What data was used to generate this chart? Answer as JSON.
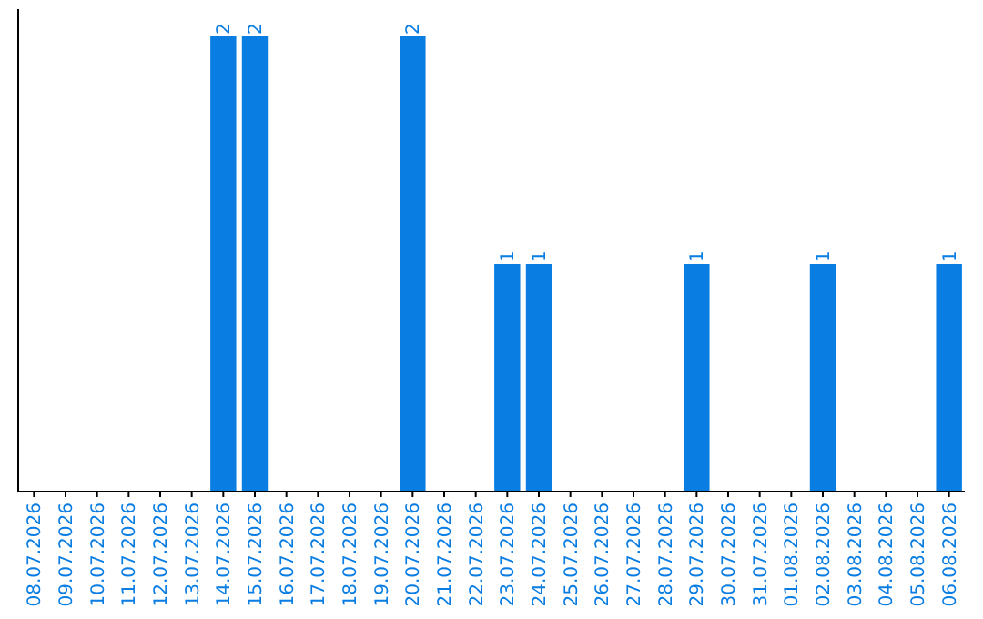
{
  "chart_data": {
    "type": "bar",
    "categories": [
      "08.07.2026",
      "09.07.2026",
      "10.07.2026",
      "11.07.2026",
      "12.07.2026",
      "13.07.2026",
      "14.07.2026",
      "15.07.2026",
      "16.07.2026",
      "17.07.2026",
      "18.07.2026",
      "19.07.2026",
      "20.07.2026",
      "21.07.2026",
      "22.07.2026",
      "23.07.2026",
      "24.07.2026",
      "25.07.2026",
      "26.07.2026",
      "27.07.2026",
      "28.07.2026",
      "29.07.2026",
      "30.07.2026",
      "31.07.2026",
      "01.08.2026",
      "02.08.2026",
      "03.08.2026",
      "04.08.2026",
      "05.08.2026",
      "06.08.2026"
    ],
    "values": [
      0,
      0,
      0,
      0,
      0,
      0,
      2,
      2,
      0,
      0,
      0,
      0,
      2,
      0,
      0,
      1,
      1,
      0,
      0,
      0,
      0,
      1,
      0,
      0,
      0,
      1,
      0,
      0,
      0,
      1
    ],
    "value_labels": [
      null,
      null,
      null,
      null,
      null,
      null,
      "2",
      "2",
      null,
      null,
      null,
      null,
      "2",
      null,
      null,
      "1",
      "1",
      null,
      null,
      null,
      null,
      "1",
      null,
      null,
      null,
      "1",
      null,
      null,
      null,
      "1"
    ],
    "color": "#0a7de3"
  }
}
